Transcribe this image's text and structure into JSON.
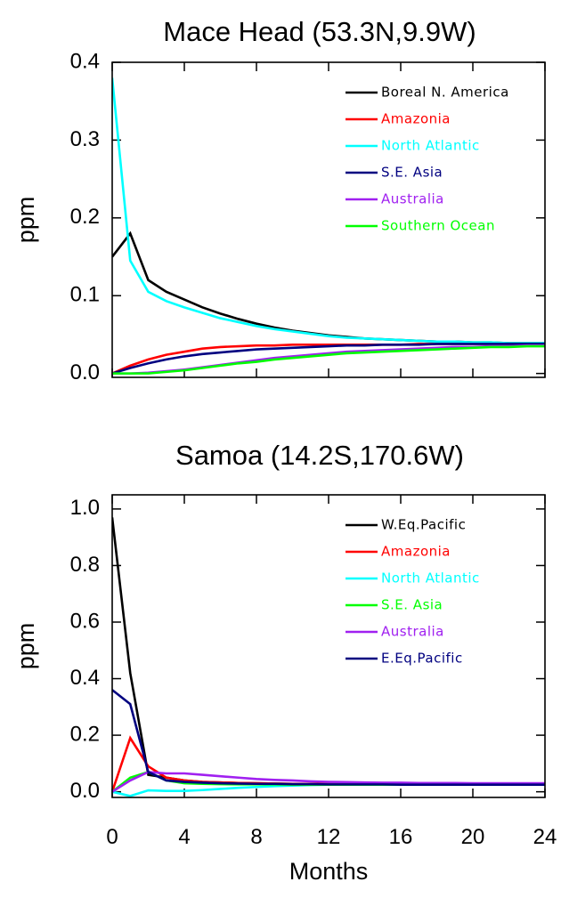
{
  "chart_data": [
    {
      "type": "line",
      "title": "Mace Head (53.3N,9.9W)",
      "ylabel": "ppm",
      "x": [
        0,
        1,
        2,
        3,
        4,
        5,
        6,
        7,
        8,
        9,
        10,
        11,
        12,
        13,
        14,
        15,
        16,
        17,
        18,
        19,
        20,
        21,
        22,
        23,
        24
      ],
      "xlim": [
        0,
        24
      ],
      "xticks": [
        0,
        4,
        8,
        12,
        16,
        20,
        24
      ],
      "show_xtick_labels": false,
      "ylim": [
        -0.005,
        0.4
      ],
      "yticks": [
        {
          "value": 0,
          "label": "0.0"
        },
        0.1,
        0.2,
        0.3,
        0.4
      ],
      "legend": "upper right",
      "series": [
        {
          "name": "Boreal N. America",
          "color": "#000000",
          "values": [
            0.15,
            0.18,
            0.12,
            0.105,
            0.095,
            0.085,
            0.077,
            0.07,
            0.064,
            0.059,
            0.055,
            0.052,
            0.049,
            0.047,
            0.045,
            0.044,
            0.043,
            0.042,
            0.041,
            0.041,
            0.04,
            0.04,
            0.039,
            0.039,
            0.039
          ]
        },
        {
          "name": "Amazonia",
          "color": "#ff0000",
          "values": [
            0,
            0.01,
            0.018,
            0.024,
            0.028,
            0.032,
            0.034,
            0.035,
            0.036,
            0.036,
            0.037,
            0.037,
            0.037,
            0.037,
            0.037,
            0.037,
            0.037,
            0.038,
            0.038,
            0.038,
            0.038,
            0.038,
            0.038,
            0.038,
            0.038
          ]
        },
        {
          "name": "North Atlantic",
          "color": "#00ffff",
          "values": [
            0.38,
            0.145,
            0.105,
            0.093,
            0.085,
            0.078,
            0.071,
            0.066,
            0.061,
            0.057,
            0.054,
            0.051,
            0.048,
            0.046,
            0.045,
            0.044,
            0.043,
            0.042,
            0.041,
            0.041,
            0.04,
            0.04,
            0.039,
            0.039,
            0.039
          ]
        },
        {
          "name": "S.E. Asia",
          "color": "#000080",
          "values": [
            0,
            0.007,
            0.013,
            0.018,
            0.022,
            0.025,
            0.027,
            0.029,
            0.031,
            0.032,
            0.033,
            0.034,
            0.035,
            0.036,
            0.036,
            0.037,
            0.037,
            0.037,
            0.038,
            0.038,
            0.038,
            0.038,
            0.038,
            0.038,
            0.038
          ]
        },
        {
          "name": "Australia",
          "color": "#a020f0",
          "values": [
            0,
            0,
            0.001,
            0.003,
            0.005,
            0.008,
            0.011,
            0.014,
            0.017,
            0.02,
            0.022,
            0.024,
            0.026,
            0.028,
            0.029,
            0.03,
            0.031,
            0.032,
            0.033,
            0.034,
            0.034,
            0.035,
            0.035,
            0.036,
            0.036
          ]
        },
        {
          "name": "Southern Ocean",
          "color": "#00ff00",
          "values": [
            0,
            0,
            0,
            0.002,
            0.004,
            0.007,
            0.01,
            0.013,
            0.015,
            0.018,
            0.02,
            0.022,
            0.024,
            0.026,
            0.027,
            0.028,
            0.029,
            0.03,
            0.031,
            0.032,
            0.033,
            0.034,
            0.034,
            0.035,
            0.035
          ]
        }
      ]
    },
    {
      "type": "line",
      "title": "Samoa (14.2S,170.6W)",
      "ylabel": "ppm",
      "xlabel": "Months",
      "x": [
        0,
        1,
        2,
        3,
        4,
        5,
        6,
        7,
        8,
        9,
        10,
        11,
        12,
        13,
        14,
        15,
        16,
        17,
        18,
        19,
        20,
        21,
        22,
        23,
        24
      ],
      "xlim": [
        0,
        24
      ],
      "xticks": [
        0,
        4,
        8,
        12,
        16,
        20,
        24
      ],
      "show_xtick_labels": true,
      "ylim": [
        -0.02,
        1.05
      ],
      "yticks": [
        {
          "value": 0,
          "label": "0.0"
        },
        0.2,
        0.4,
        0.6,
        0.8,
        {
          "value": 1,
          "label": "1.0"
        }
      ],
      "legend": "upper right",
      "series": [
        {
          "name": "W.Eq.Pacific",
          "color": "#000000",
          "values": [
            0.97,
            0.42,
            0.06,
            0.05,
            0.04,
            0.035,
            0.033,
            0.031,
            0.03,
            0.029,
            0.028,
            0.028,
            0.027,
            0.027,
            0.026,
            0.026,
            0.026,
            0.026,
            0.025,
            0.025,
            0.025,
            0.025,
            0.025,
            0.025,
            0.025
          ]
        },
        {
          "name": "Amazonia",
          "color": "#ff0000",
          "values": [
            0,
            0.19,
            0.09,
            0.05,
            0.04,
            0.035,
            0.033,
            0.031,
            0.03,
            0.029,
            0.028,
            0.028,
            0.027,
            0.027,
            0.026,
            0.026,
            0.026,
            0.026,
            0.025,
            0.025,
            0.025,
            0.025,
            0.025,
            0.025,
            0.025
          ]
        },
        {
          "name": "North Atlantic",
          "color": "#00ffff",
          "values": [
            0,
            -0.015,
            0.005,
            0.003,
            0.003,
            0.006,
            0.01,
            0.014,
            0.017,
            0.02,
            0.022,
            0.024,
            0.025,
            0.025,
            0.025,
            0.025,
            0.025,
            0.025,
            0.025,
            0.025,
            0.025,
            0.025,
            0.025,
            0.025,
            0.025
          ]
        },
        {
          "name": "S.E. Asia",
          "color": "#00ff00",
          "values": [
            0,
            0.05,
            0.07,
            0.04,
            0.03,
            0.028,
            0.027,
            0.026,
            0.026,
            0.026,
            0.025,
            0.025,
            0.025,
            0.025,
            0.025,
            0.025,
            0.025,
            0.025,
            0.025,
            0.025,
            0.025,
            0.025,
            0.025,
            0.025,
            0.025
          ]
        },
        {
          "name": "Australia",
          "color": "#a020f0",
          "values": [
            0,
            0.04,
            0.07,
            0.065,
            0.065,
            0.06,
            0.055,
            0.05,
            0.045,
            0.042,
            0.04,
            0.037,
            0.035,
            0.034,
            0.033,
            0.032,
            0.032,
            0.031,
            0.031,
            0.031,
            0.03,
            0.03,
            0.03,
            0.03,
            0.03
          ]
        },
        {
          "name": "E.Eq.Pacific",
          "color": "#000080",
          "values": [
            0.36,
            0.31,
            0.07,
            0.04,
            0.035,
            0.032,
            0.03,
            0.029,
            0.028,
            0.028,
            0.027,
            0.027,
            0.026,
            0.026,
            0.026,
            0.026,
            0.025,
            0.025,
            0.025,
            0.025,
            0.025,
            0.025,
            0.025,
            0.025,
            0.025
          ]
        }
      ]
    }
  ]
}
